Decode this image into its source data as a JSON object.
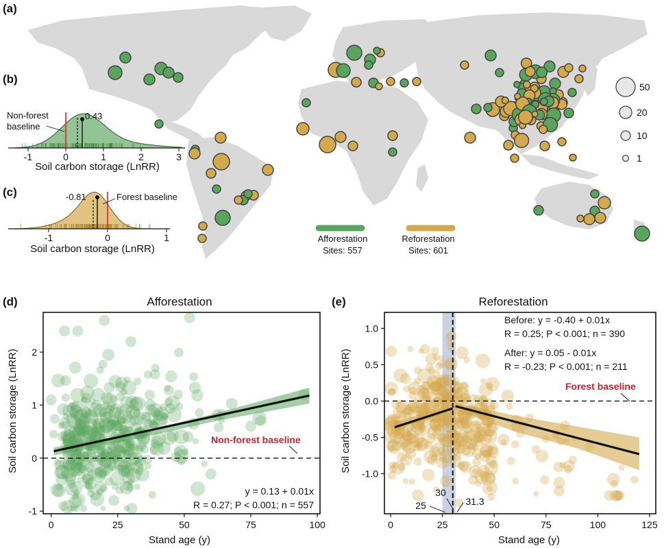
{
  "panels": {
    "a": "(a)",
    "b": "(b)",
    "c": "(c)",
    "d": "(d)",
    "e": "(e)"
  },
  "colors": {
    "afforestation": "#5aa55e",
    "reforestation": "#d3a94c",
    "land": "#d9d9d9",
    "baseline": "#dd2222",
    "annotation": "#cc2233"
  },
  "map": {
    "size_legend": [
      "50",
      "20",
      "10",
      "1"
    ],
    "legend": [
      {
        "name": "Afforestation",
        "sites": "Sites: 557"
      },
      {
        "name": "Reforestation",
        "sites": "Sites: 601"
      }
    ]
  },
  "panel_b": {
    "mean_label": "0.43",
    "baseline_label": "Non-forest baseline",
    "baseline_line1": "Non-forest",
    "baseline_line2": "baseline",
    "xlabel": "Soil carbon storage (LnRR)",
    "ticks": [
      "-1",
      "0",
      "1",
      "2",
      "3"
    ]
  },
  "panel_c": {
    "mean_label": "-0.81",
    "baseline_label": "Forest baseline",
    "xlabel": "Soil carbon storage (LnRR)",
    "ticks": [
      "-1",
      "0",
      "1"
    ]
  },
  "panel_d": {
    "title": "Afforestation",
    "xlabel": "Stand age (y)",
    "ylabel": "Soil carbon storage (LnRR)",
    "eq_line1": "y  =  0.13  +  0.01x",
    "eq_line2": "R = 0.27; P < 0.001; n = 557",
    "baseline_label": "Non-forest baseline",
    "xticks": [
      "0",
      "25",
      "50",
      "75",
      "100"
    ],
    "yticks": [
      "-1",
      "0",
      "1",
      "2"
    ]
  },
  "panel_e": {
    "title": "Reforestation",
    "xlabel": "Stand age (y)",
    "ylabel": "Soil carbon storage (LnRR)",
    "before_line1": "Before: y = -0.40 + 0.01x",
    "before_line2": "R = 0.25; P < 0.001; n = 390",
    "after_line1": "After: y = 0.05 - 0.01x",
    "after_line2": "R = -0.23; P < 0.001; n = 211",
    "baseline_label": "Forest baseline",
    "break_labels": {
      "low": "25",
      "mid": "30",
      "high": "31.3"
    },
    "xticks": [
      "0",
      "25",
      "50",
      "75",
      "100",
      "125"
    ],
    "yticks": [
      "-1.0",
      "-0.5",
      "0.0",
      "0.5",
      "1.0"
    ]
  },
  "chart_data": [
    {
      "type": "scatter",
      "panel": "d",
      "title": "Afforestation",
      "xlabel": "Stand age (y)",
      "ylabel": "Soil carbon storage (LnRR)",
      "xlim": [
        -3,
        101
      ],
      "ylim": [
        -1.05,
        2.75
      ],
      "fit": {
        "x": [
          1,
          97
        ],
        "y": [
          0.13,
          1.18
        ],
        "equation": "y = 0.13 + 0.01x"
      },
      "baseline": 0,
      "points_sample": [
        [
          0,
          1.1
        ],
        [
          5,
          2.4
        ],
        [
          10,
          2.4
        ],
        [
          20,
          2.6
        ],
        [
          30,
          2.2
        ],
        [
          52,
          2.65
        ],
        [
          10,
          0.5
        ],
        [
          15,
          0.3
        ],
        [
          25,
          0.6
        ],
        [
          40,
          0.8
        ],
        [
          60,
          -0.3
        ],
        [
          75,
          0.6
        ],
        [
          95,
          1.2
        ]
      ]
    },
    {
      "type": "scatter",
      "panel": "e",
      "title": "Reforestation",
      "xlabel": "Stand age (y)",
      "ylabel": "Soil carbon storage (LnRR)",
      "xlim": [
        -3,
        128
      ],
      "ylim": [
        -1.55,
        1.22
      ],
      "fit_before": {
        "x": [
          2,
          30
        ],
        "y": [
          -0.36,
          -0.1
        ]
      },
      "fit_after": {
        "x": [
          31.3,
          120
        ],
        "y": [
          -0.07,
          -0.73
        ]
      },
      "breakpoint": 30,
      "breakpoint_ci": [
        25,
        31.3
      ],
      "baseline": 0
    }
  ]
}
